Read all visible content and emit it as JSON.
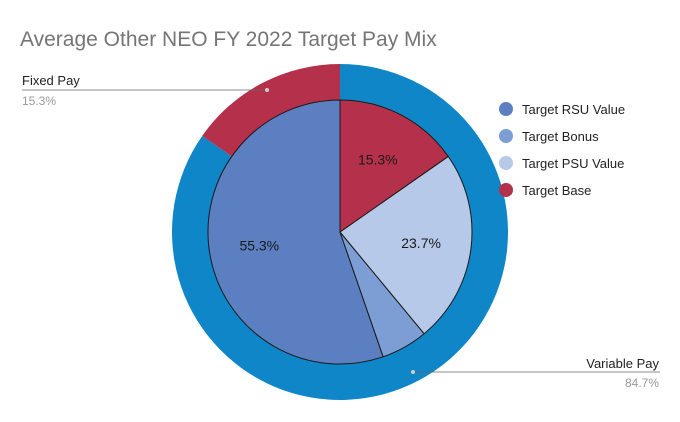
{
  "chart_data": {
    "type": "pie",
    "title": "Average Other NEO FY 2022 Target Pay Mix",
    "outer_ring": {
      "categories": [
        "Variable Pay",
        "Fixed Pay"
      ],
      "values": [
        84.7,
        15.3
      ],
      "value_labels": [
        "84.7%",
        "15.3%"
      ],
      "colors": [
        "#0E86C8",
        "#B5304A"
      ]
    },
    "inner_pie": {
      "categories": [
        "Target RSU Value",
        "Target Bonus",
        "Target PSU Value",
        "Target Base"
      ],
      "values": [
        55.3,
        5.7,
        23.7,
        15.3
      ],
      "data_labels": [
        "55.3%",
        "",
        "23.7%",
        "15.3%"
      ],
      "colors": [
        "#5B7FC1",
        "#7C9ED4",
        "#B7C9E8",
        "#B5304A"
      ]
    },
    "legend": {
      "position": "right",
      "entries": [
        "Target RSU Value",
        "Target Bonus",
        "Target PSU Value",
        "Target Base"
      ]
    }
  }
}
